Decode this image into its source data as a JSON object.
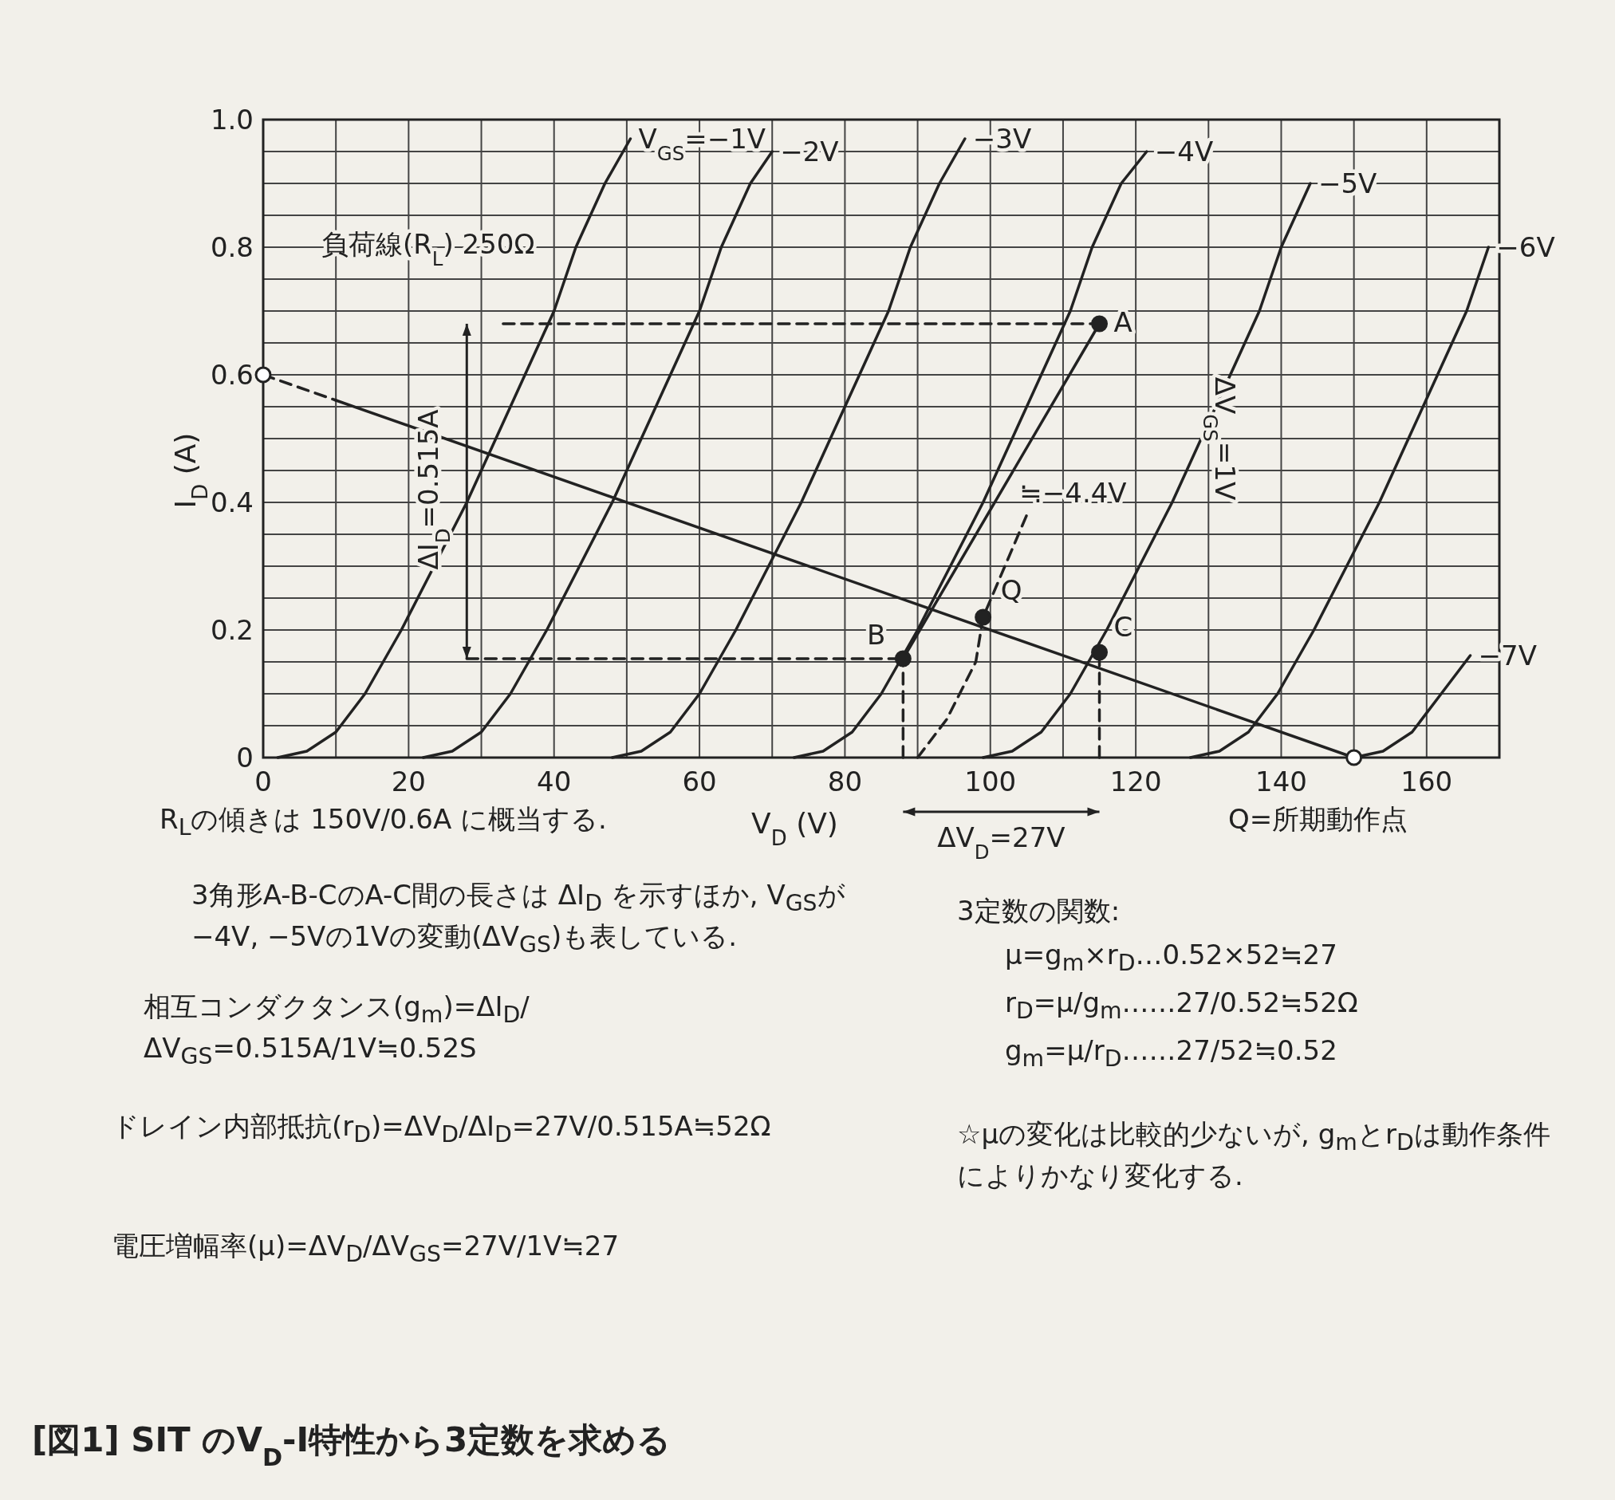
{
  "chart_data": {
    "type": "line",
    "title": "[図1] SIT のV$_{D}$-I特性から3定数を求める",
    "xlabel": "V$_{D}$ (V)",
    "ylabel": "I$_{D}$ (A)",
    "xlim": [
      0,
      170
    ],
    "ylim": [
      0,
      1
    ],
    "xticks": [
      0,
      {
        "value": 10,
        "label": null
      },
      20,
      {
        "value": 30,
        "label": null
      },
      40,
      {
        "value": 50,
        "label": null
      },
      60,
      {
        "value": 70,
        "label": null
      },
      80,
      {
        "value": 90,
        "label": null
      },
      100,
      {
        "value": 110,
        "label": null
      },
      120,
      {
        "value": 130,
        "label": null
      },
      140,
      {
        "value": 150,
        "label": null
      },
      160,
      {
        "value": 170,
        "label": null
      }
    ],
    "yticks": [
      0,
      {
        "value": 0.05,
        "label": null
      },
      {
        "value": 0.1,
        "label": null
      },
      {
        "value": 0.15,
        "label": null
      },
      0.2,
      {
        "value": 0.25,
        "label": null
      },
      {
        "value": 0.3,
        "label": null
      },
      {
        "value": 0.35,
        "label": null
      },
      0.4,
      {
        "value": 0.45,
        "label": null
      },
      {
        "value": 0.5,
        "label": null
      },
      {
        "value": 0.55,
        "label": null
      },
      0.6,
      {
        "value": 0.65,
        "label": null
      },
      {
        "value": 0.7,
        "label": null
      },
      {
        "value": 0.75,
        "label": null
      },
      0.8,
      {
        "value": 0.85,
        "label": null
      },
      {
        "value": 0.9,
        "label": null
      },
      {
        "value": 0.95,
        "label": null
      },
      {
        "value": 1,
        "label": "1.0"
      }
    ],
    "grid": true,
    "legend": false,
    "series": [
      {
        "name": "V$_{GS}$=−1V",
        "color": "#222222",
        "x": [
          2,
          6,
          10,
          14,
          19,
          23.5,
          28,
          32,
          36,
          40,
          43,
          47,
          50.5
        ],
        "values": [
          0,
          0.01,
          0.04,
          0.1,
          0.2,
          0.3,
          0.4,
          0.5,
          0.6,
          0.7,
          0.8,
          0.9,
          0.97
        ]
      },
      {
        "name": "−2V",
        "color": "#222222",
        "x": [
          22,
          26,
          30,
          34,
          39,
          43.5,
          48,
          52,
          56,
          60,
          63,
          67,
          70
        ],
        "values": [
          0,
          0.01,
          0.04,
          0.1,
          0.2,
          0.3,
          0.4,
          0.5,
          0.6,
          0.7,
          0.8,
          0.9,
          0.95
        ]
      },
      {
        "name": "−3V",
        "color": "#222222",
        "x": [
          48,
          52,
          56,
          60,
          65,
          69.5,
          74,
          78,
          82,
          86,
          89,
          93,
          96.5
        ],
        "values": [
          0,
          0.01,
          0.04,
          0.1,
          0.2,
          0.3,
          0.4,
          0.5,
          0.6,
          0.7,
          0.8,
          0.9,
          0.97
        ]
      },
      {
        "name": "−4V",
        "color": "#222222",
        "x": [
          73,
          77,
          81,
          85,
          90,
          94.5,
          99,
          103,
          107,
          111,
          114,
          118,
          121.5
        ],
        "values": [
          0,
          0.01,
          0.04,
          0.1,
          0.2,
          0.3,
          0.4,
          0.5,
          0.6,
          0.7,
          0.8,
          0.9,
          0.95
        ]
      },
      {
        "name": "−5V",
        "color": "#222222",
        "x": [
          99,
          103,
          107,
          111,
          116,
          120.5,
          125,
          129,
          133,
          137,
          140,
          144
        ],
        "values": [
          0,
          0.01,
          0.04,
          0.1,
          0.2,
          0.3,
          0.4,
          0.5,
          0.6,
          0.7,
          0.8,
          0.9
        ]
      },
      {
        "name": "−6V",
        "color": "#222222",
        "x": [
          127.5,
          131.5,
          135.5,
          139.5,
          144.5,
          149,
          153.5,
          157.5,
          161.5,
          165.5,
          168.5
        ],
        "values": [
          0,
          0.01,
          0.04,
          0.1,
          0.2,
          0.3,
          0.4,
          0.5,
          0.6,
          0.7,
          0.8
        ]
      },
      {
        "name": "−7V",
        "color": "#222222",
        "x": [
          150,
          154,
          158,
          162,
          166
        ],
        "values": [
          0,
          0.01,
          0.04,
          0.1,
          0.16
        ]
      },
      {
        "color": "#222222",
        "x": [
          0,
          10
        ],
        "values": [
          0.6,
          0.56
        ],
        "line_style": "dashed"
      },
      {
        "color": "#222222",
        "x": [
          10,
          150
        ],
        "values": [
          0.56,
          0
        ]
      },
      {
        "type": "scatter",
        "color": "#ffffff",
        "x": [
          0,
          150
        ],
        "values": [
          0.6,
          0
        ],
        "marker": "circle"
      },
      {
        "color": "#222222",
        "x": [
          90,
          94,
          98,
          99,
          102,
          105
        ],
        "values": [
          0,
          0.06,
          0.15,
          0.22,
          0.3,
          0.38
        ],
        "line_style": "dashed"
      },
      {
        "color": "#222222",
        "x": [
          88,
          115
        ],
        "values": [
          0.155,
          0.68
        ]
      },
      {
        "color": "#222222",
        "x": [
          28,
          88
        ],
        "values": [
          0.155,
          0.155
        ],
        "line_style": "dashed"
      },
      {
        "color": "#222222",
        "x": [
          33,
          115
        ],
        "values": [
          0.68,
          0.68
        ],
        "line_style": "dashed"
      },
      {
        "color": "#222222",
        "x": [
          88,
          88
        ],
        "values": [
          0,
          0.155
        ],
        "line_style": "dashed"
      },
      {
        "color": "#222222",
        "x": [
          115,
          115
        ],
        "values": [
          0,
          0.165
        ],
        "line_style": "dashed"
      },
      {
        "type": "scatter",
        "color": "#222222",
        "x": [
          115,
          88,
          115,
          99
        ],
        "values": [
          0.68,
          0.155,
          0.165,
          0.22
        ],
        "marker": "circle"
      }
    ],
    "annotations": [
      {
        "text": "A",
        "x": 115,
        "y": 0.68
      },
      {
        "text": "B",
        "x": 88,
        "y": 0.155
      },
      {
        "text": "C",
        "x": 115,
        "y": 0.165
      },
      {
        "text": "Q",
        "x": 99,
        "y": 0.22
      },
      "負荷線(R$_{L}$) 250Ω",
      "≒−4.4V",
      "ΔI$_{D}$=0.515A",
      "ΔV$_{GS}$=1V",
      "ΔV$_{D}$=27V",
      "R$_{L}$の傾きは 150V/0.6A に概当する.",
      "Q=所期動作点",
      "3角形A-B-CのA-C間の長さは ΔI$_{D}$ を示すほか, V$_{GS}$が−4V, −5Vの1Vの変動(ΔV$_{GS}$)も表している.",
      "相互コンダクタンス(g$_{m}$)=ΔI$_{D}$/ΔV$_{GS}$=0.515A/1V≒0.52S",
      "ドレイン内部抵抗(r$_{D}$)=ΔV$_{D}$/ΔI$_{D}$=27V/0.515A≒52Ω",
      "電圧増幅率(μ)=ΔV$_{D}$/ΔV$_{GS}$=27V/1V≒27",
      "3定数の関数:",
      "μ=g$_{m}$×r$_{D}$…0.52×52≒27",
      "r$_{D}$=μ/g$_{m}$……27/0.52≒52Ω",
      "g$_{m}$=μ/r$_{D}$……27/52≒0.52",
      "☆μの変化は比較的少ないが, g$_{m}$とr$_{D}$は動作条件によりかなり変化する."
    ]
  }
}
